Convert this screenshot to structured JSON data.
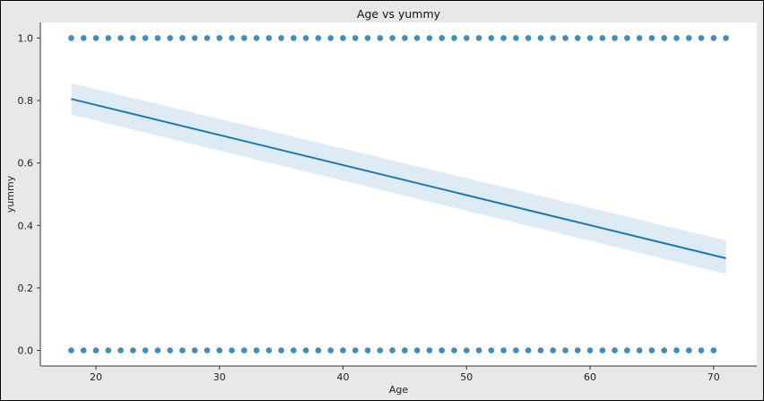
{
  "chart_data": {
    "type": "scatter",
    "title": "Age vs yummy",
    "xlabel": "Age",
    "ylabel": "yummy",
    "xlim": [
      15.5,
      73.5
    ],
    "ylim": [
      -0.05,
      1.05
    ],
    "xticks": [
      20,
      30,
      40,
      50,
      60,
      70
    ],
    "xtick_labels": [
      "20",
      "30",
      "40",
      "50",
      "60",
      "70"
    ],
    "yticks": [
      0.0,
      0.2,
      0.4,
      0.6,
      0.8,
      1.0
    ],
    "ytick_labels": [
      "0.0",
      "0.2",
      "0.4",
      "0.6",
      "0.8",
      "1.0"
    ],
    "grid": false,
    "series": [
      {
        "kind": "points",
        "x": [
          18,
          19,
          20,
          21,
          22,
          23,
          24,
          25,
          26,
          27,
          28,
          29,
          30,
          31,
          32,
          33,
          34,
          35,
          36,
          37,
          38,
          39,
          40,
          41,
          42,
          43,
          44,
          45,
          46,
          47,
          48,
          49,
          50,
          51,
          52,
          53,
          54,
          55,
          56,
          57,
          58,
          59,
          60,
          61,
          62,
          63,
          64,
          65,
          66,
          67,
          68,
          69,
          70,
          71,
          18,
          19,
          20,
          21,
          22,
          23,
          24,
          25,
          26,
          27,
          28,
          29,
          30,
          31,
          32,
          33,
          34,
          35,
          36,
          37,
          38,
          39,
          40,
          41,
          42,
          43,
          44,
          45,
          46,
          47,
          48,
          49,
          50,
          51,
          52,
          53,
          54,
          55,
          56,
          57,
          58,
          59,
          60,
          61,
          62,
          63,
          64,
          65,
          66,
          67,
          68,
          69,
          70
        ],
        "y": [
          1,
          1,
          1,
          1,
          1,
          1,
          1,
          1,
          1,
          1,
          1,
          1,
          1,
          1,
          1,
          1,
          1,
          1,
          1,
          1,
          1,
          1,
          1,
          1,
          1,
          1,
          1,
          1,
          1,
          1,
          1,
          1,
          1,
          1,
          1,
          1,
          1,
          1,
          1,
          1,
          1,
          1,
          1,
          1,
          1,
          1,
          1,
          1,
          1,
          1,
          1,
          1,
          1,
          1,
          0,
          0,
          0,
          0,
          0,
          0,
          0,
          0,
          0,
          0,
          0,
          0,
          0,
          0,
          0,
          0,
          0,
          0,
          0,
          0,
          0,
          0,
          0,
          0,
          0,
          0,
          0,
          0,
          0,
          0,
          0,
          0,
          0,
          0,
          0,
          0,
          0,
          0,
          0,
          0,
          0,
          0,
          0,
          0,
          0,
          0,
          0,
          0,
          0,
          0,
          0,
          0,
          0
        ]
      },
      {
        "kind": "regression",
        "x": [
          18,
          71
        ],
        "y": [
          0.805,
          0.295
        ],
        "ci_lower": [
          0.755,
          0.245
        ],
        "ci_upper": [
          0.855,
          0.352
        ]
      }
    ],
    "colors": {
      "points": "#1f77b4",
      "line": "#1f77b4",
      "band": "#1f77b4",
      "background": "#ffffff",
      "figure": "#e8e8e8"
    }
  }
}
